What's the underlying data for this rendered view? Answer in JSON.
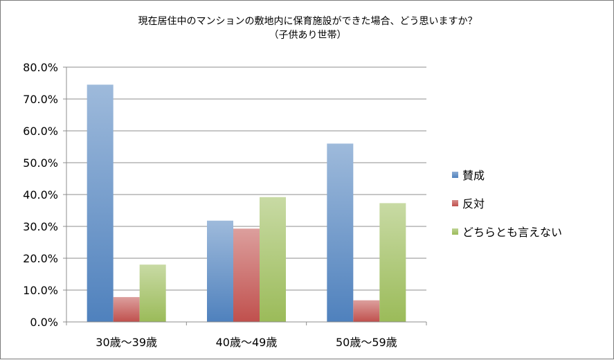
{
  "chart_data": {
    "type": "bar",
    "title": "現在居住中のマンションの敷地内に保育施設ができた場合、どう思いますか？",
    "subtitle": "（子供あり世帯）",
    "categories": [
      "30歳〜39歳",
      "40歳〜49歳",
      "50歳〜59歳"
    ],
    "series": [
      {
        "name": "賛成",
        "values": [
          74.5,
          31.8,
          56.0
        ],
        "color": "#4f81bd"
      },
      {
        "name": "反対",
        "values": [
          7.8,
          29.3,
          6.8
        ],
        "color": "#c0504d"
      },
      {
        "name": "どちらとも言えない",
        "values": [
          18.0,
          39.2,
          37.3
        ],
        "color": "#9bbb59"
      }
    ],
    "ylim": [
      0,
      80
    ],
    "yticks": [
      "0.0%",
      "10.0%",
      "20.0%",
      "30.0%",
      "40.0%",
      "50.0%",
      "60.0%",
      "70.0%",
      "80.0%"
    ],
    "xlabel": "",
    "ylabel": "",
    "grid": true,
    "legend_position": "right"
  }
}
